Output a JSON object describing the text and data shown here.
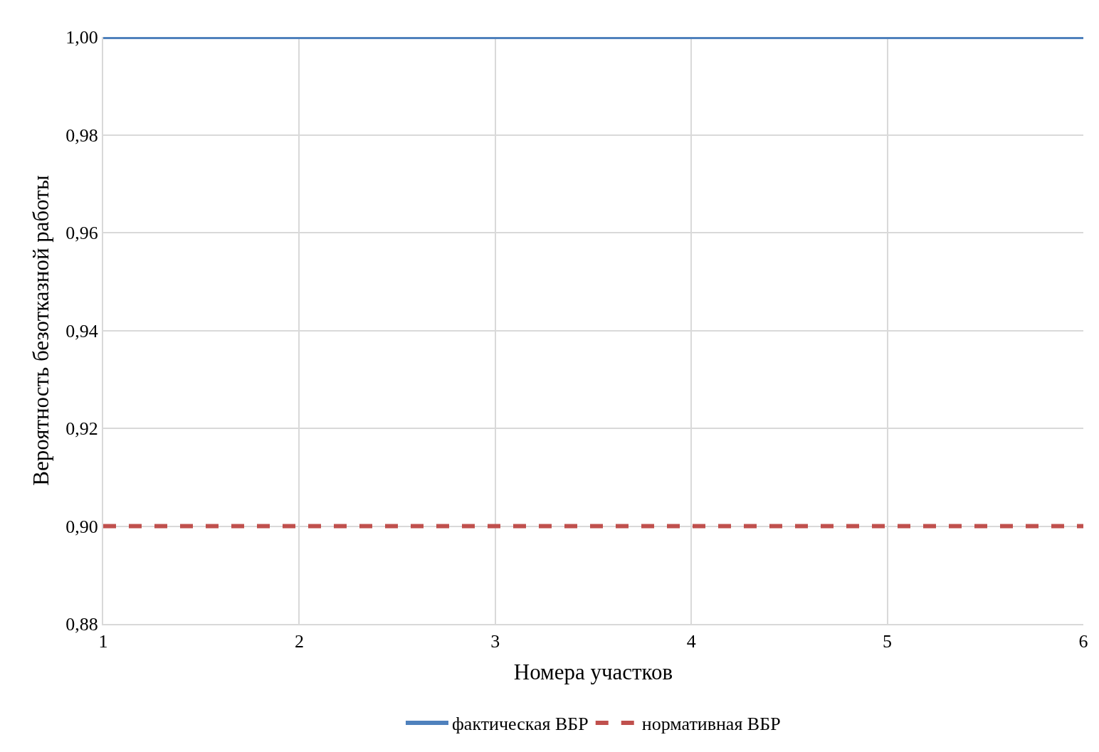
{
  "chart_data": {
    "type": "line",
    "xlabel": "Номера участков",
    "ylabel": "Вероятность безотказной работы",
    "categories": [
      "1",
      "2",
      "3",
      "4",
      "5",
      "6"
    ],
    "series": [
      {
        "name": "фактическая ВБР",
        "color": "#4f81bd",
        "values": [
          1.0,
          1.0,
          1.0,
          1.0,
          1.0,
          1.0
        ],
        "line_style": "solid"
      },
      {
        "name": "нормативная ВБР",
        "color": "#c0504d",
        "values": [
          0.9,
          0.9,
          0.9,
          0.9,
          0.9,
          0.9
        ],
        "line_style": "dashed"
      }
    ],
    "ylim": [
      0.88,
      1.0
    ],
    "yticks": [
      {
        "value": 0.88,
        "label": "0,88"
      },
      {
        "value": 0.9,
        "label": "0,90"
      },
      {
        "value": 0.92,
        "label": "0,92"
      },
      {
        "value": 0.94,
        "label": "0,94"
      },
      {
        "value": 0.96,
        "label": "0,96"
      },
      {
        "value": 0.98,
        "label": "0,98"
      },
      {
        "value": 1.0,
        "label": "1,00"
      }
    ],
    "grid": true,
    "legend": "bottom",
    "marker": "none"
  }
}
